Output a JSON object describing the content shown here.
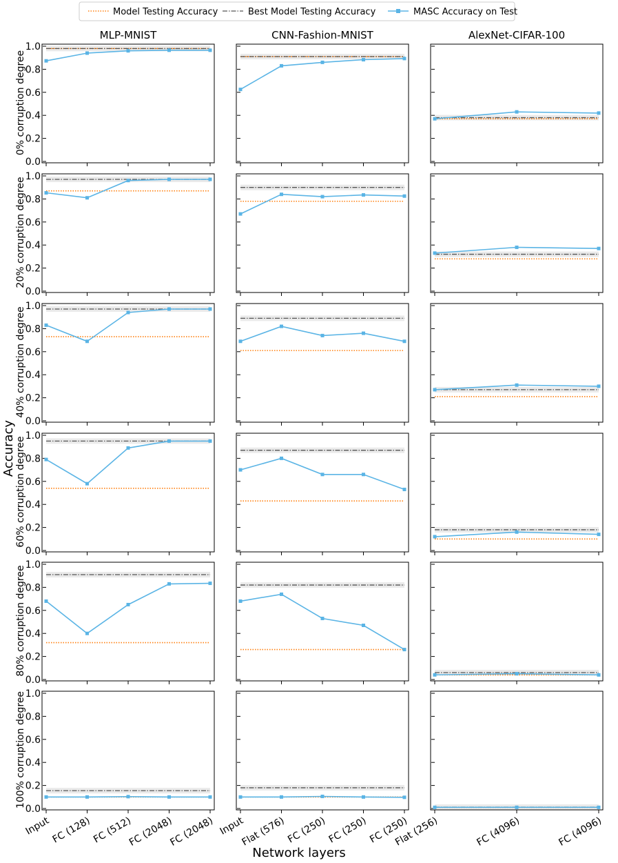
{
  "legend": {
    "model": "Model Testing Accuracy",
    "best": "Best Model Testing Accuracy",
    "masc": "MASC Accuracy on Test"
  },
  "ylabel": "Accuracy",
  "xlabel": "Network layers",
  "colors": {
    "model": "#ff7f0e",
    "best": "#555555",
    "masc": "#5ab4e5",
    "band": "#d9d9d9"
  },
  "chart_data": {
    "type": "line",
    "ylim": [
      0,
      1.0
    ],
    "yticks": [
      "0.0",
      "0.2",
      "0.4",
      "0.6",
      "0.8",
      "1.0"
    ],
    "rows": [
      "0% corruption degree",
      "20% corruption degree",
      "40% corruption degree",
      "60% corruption degree",
      "80% corruption degree",
      "100% corruption degree"
    ],
    "columns": [
      {
        "title": "MLP-MNIST",
        "layers": [
          "Input",
          "FC (128)",
          "FC (512)",
          "FC (2048)",
          "FC (2048)"
        ],
        "panels": [
          {
            "model": 0.98,
            "best": 0.98,
            "masc": [
              0.873,
              0.94,
              0.96,
              0.965,
              0.965
            ]
          },
          {
            "model": 0.87,
            "best": 0.97,
            "masc": [
              0.853,
              0.81,
              0.96,
              0.97,
              0.97
            ]
          },
          {
            "model": 0.73,
            "best": 0.97,
            "masc": [
              0.83,
              0.69,
              0.94,
              0.97,
              0.97
            ]
          },
          {
            "model": 0.54,
            "best": 0.95,
            "masc": [
              0.79,
              0.58,
              0.89,
              0.95,
              0.95
            ]
          },
          {
            "model": 0.32,
            "best": 0.91,
            "masc": [
              0.68,
              0.4,
              0.65,
              0.83,
              0.835
            ]
          },
          {
            "model": 0.1,
            "best": 0.155,
            "masc": [
              0.1,
              0.1,
              0.103,
              0.1,
              0.1
            ]
          }
        ]
      },
      {
        "title": "CNN-Fashion-MNIST",
        "layers": [
          "Input",
          "Flat (576)",
          "FC (250)",
          "FC (250)",
          "FC (250)"
        ],
        "panels": [
          {
            "model": 0.91,
            "best": 0.91,
            "masc": [
              0.625,
              0.83,
              0.86,
              0.883,
              0.893
            ]
          },
          {
            "model": 0.78,
            "best": 0.9,
            "masc": [
              0.67,
              0.84,
              0.82,
              0.835,
              0.825
            ]
          },
          {
            "model": 0.61,
            "best": 0.89,
            "masc": [
              0.69,
              0.82,
              0.74,
              0.76,
              0.69
            ]
          },
          {
            "model": 0.43,
            "best": 0.87,
            "masc": [
              0.7,
              0.8,
              0.66,
              0.66,
              0.53
            ]
          },
          {
            "model": 0.26,
            "best": 0.82,
            "masc": [
              0.68,
              0.74,
              0.53,
              0.47,
              0.26
            ]
          },
          {
            "model": 0.1,
            "best": 0.18,
            "masc": [
              0.1,
              0.1,
              0.105,
              0.1,
              0.097
            ]
          }
        ]
      },
      {
        "title": "AlexNet-CIFAR-100",
        "layers": [
          "Flat (256)",
          "FC (4096)",
          "FC (4096)"
        ],
        "panels": [
          {
            "model": 0.37,
            "best": 0.38,
            "masc": [
              0.37,
              0.43,
              0.42
            ]
          },
          {
            "model": 0.28,
            "best": 0.32,
            "masc": [
              0.33,
              0.38,
              0.37
            ]
          },
          {
            "model": 0.21,
            "best": 0.27,
            "masc": [
              0.27,
              0.31,
              0.3
            ]
          },
          {
            "model": 0.1,
            "best": 0.18,
            "masc": [
              0.12,
              0.16,
              0.14
            ]
          },
          {
            "model": 0.04,
            "best": 0.06,
            "masc": [
              0.04,
              0.05,
              0.04
            ]
          },
          {
            "model": 0.01,
            "best": 0.012,
            "masc": [
              0.01,
              0.01,
              0.01
            ]
          }
        ]
      }
    ]
  }
}
